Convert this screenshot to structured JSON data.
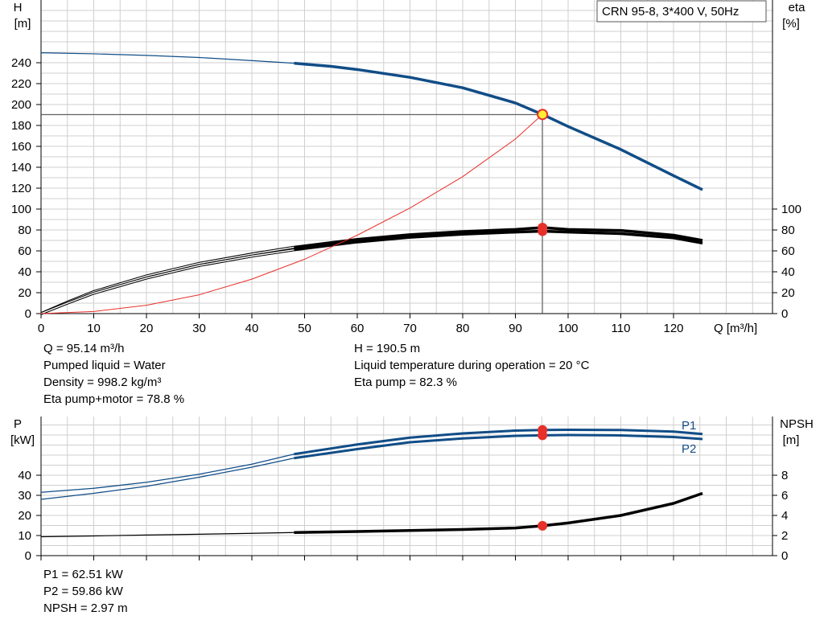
{
  "product_label": "CRN 95-8, 3*400 V, 50Hz",
  "chart_data": [
    {
      "type": "line",
      "x_axis": {
        "label": "Q [m³/h]",
        "range": [
          0,
          130
        ],
        "ticks": [
          0,
          10,
          20,
          30,
          40,
          50,
          60,
          70,
          80,
          90,
          100,
          110,
          120
        ]
      },
      "y_left": {
        "label_line1": "H",
        "label_line2": "[m]",
        "range": [
          0,
          260
        ],
        "ticks": [
          0,
          20,
          40,
          60,
          80,
          100,
          120,
          140,
          160,
          180,
          200,
          220,
          240
        ]
      },
      "y_right": {
        "label_line1": "eta",
        "label_line2": "[%]",
        "range": [
          0,
          260
        ],
        "ticks": [
          0,
          20,
          40,
          60,
          80,
          100
        ]
      },
      "grid": true,
      "series": [
        {
          "name": "",
          "color": "#114d87",
          "x": [
            0,
            10,
            20,
            30,
            40,
            48,
            55,
            60,
            70,
            80,
            90,
            95.14,
            100,
            110,
            120,
            125.5
          ],
          "y": [
            249.5,
            248.5,
            247,
            245,
            242,
            239.5,
            236.5,
            233.5,
            226,
            216,
            201.5,
            190.5,
            179,
            157,
            132,
            118.5
          ]
        },
        {
          "name": "",
          "color": "#000000",
          "x": [
            0,
            5,
            10,
            20,
            30,
            40,
            48,
            60,
            70,
            80,
            90,
            95.14,
            100,
            110,
            120,
            125.5
          ],
          "y": [
            0,
            11,
            21,
            36,
            48,
            57,
            63.5,
            71,
            75.5,
            78.5,
            80.5,
            82.3,
            80.5,
            79.5,
            75,
            70
          ]
        },
        {
          "name": "",
          "color": "#000000",
          "x": [
            0,
            5,
            10,
            20,
            30,
            40,
            48,
            60,
            70,
            80,
            90,
            95.14,
            100,
            110,
            120,
            125.5
          ],
          "y": [
            0,
            10,
            19.5,
            34,
            46,
            55,
            61,
            68.5,
            73,
            76,
            78,
            78.8,
            78,
            76.5,
            72.5,
            67.5
          ]
        },
        {
          "name": "",
          "color": "#e8302a",
          "x": [
            0,
            10,
            20,
            30,
            40,
            50,
            60,
            70,
            80,
            90,
            95.14
          ],
          "y": [
            0,
            2,
            8,
            18,
            33,
            52,
            75,
            101,
            131,
            167,
            190.5
          ]
        }
      ],
      "duty_point": {
        "q": 95.14,
        "h": 190.5,
        "eta_pump": 82.3,
        "eta_total": 78.8
      }
    },
    {
      "type": "line",
      "x_axis": {
        "label": "",
        "range": [
          0,
          130
        ],
        "ticks": [
          0,
          10,
          20,
          30,
          40,
          50,
          60,
          70,
          80,
          90,
          100,
          110,
          120
        ]
      },
      "y_left": {
        "label_line1": "P",
        "label_line2": "[kW]",
        "range": [
          0,
          70
        ],
        "ticks": [
          0,
          10,
          20,
          30,
          40
        ]
      },
      "y_right": {
        "label_line1": "NPSH",
        "label_line2": "[m]",
        "range": [
          0,
          14
        ],
        "ticks": [
          0,
          2,
          4,
          6,
          8
        ]
      },
      "grid": true,
      "series": [
        {
          "name": "P1",
          "color": "#114d87",
          "x": [
            0,
            10,
            20,
            30,
            40,
            48,
            60,
            70,
            80,
            90,
            95.14,
            100,
            110,
            120,
            125.5
          ],
          "y": [
            31.5,
            33.5,
            36.5,
            40.5,
            45.5,
            50.5,
            55.3,
            58.7,
            60.8,
            62.2,
            62.51,
            62.6,
            62.5,
            61.7,
            60.5
          ]
        },
        {
          "name": "P2",
          "color": "#114d87",
          "x": [
            0,
            10,
            20,
            30,
            40,
            48,
            60,
            70,
            80,
            90,
            95.14,
            100,
            110,
            120,
            125.5
          ],
          "y": [
            28,
            31,
            34.5,
            39,
            44,
            48.5,
            53,
            56.4,
            58.3,
            59.6,
            59.86,
            60,
            59.8,
            59,
            58
          ]
        },
        {
          "name": "",
          "color": "#000000",
          "x": [
            0,
            10,
            20,
            30,
            40,
            48,
            60,
            70,
            80,
            90,
            95.14,
            100,
            110,
            120,
            125.5
          ],
          "y": [
            1.88,
            1.96,
            2.05,
            2.13,
            2.22,
            2.3,
            2.4,
            2.5,
            2.6,
            2.75,
            2.97,
            3.25,
            4.0,
            5.2,
            6.2
          ]
        }
      ],
      "duty_point": {
        "q": 95.14,
        "p1": 62.51,
        "p2": 59.86,
        "npsh": 2.97
      }
    }
  ],
  "results_top": {
    "left": [
      "Q = 95.14 m³/h",
      "Pumped liquid = Water",
      "Density = 998.2 kg/m³",
      "Eta pump+motor = 78.8 %"
    ],
    "right": [
      "H = 190.5 m",
      "Liquid temperature during operation = 20 °C",
      "Eta pump = 82.3 %"
    ]
  },
  "results_bottom": [
    "P1 = 62.51 kW",
    "P2 = 59.86 kW",
    "NPSH = 2.97 m"
  ]
}
